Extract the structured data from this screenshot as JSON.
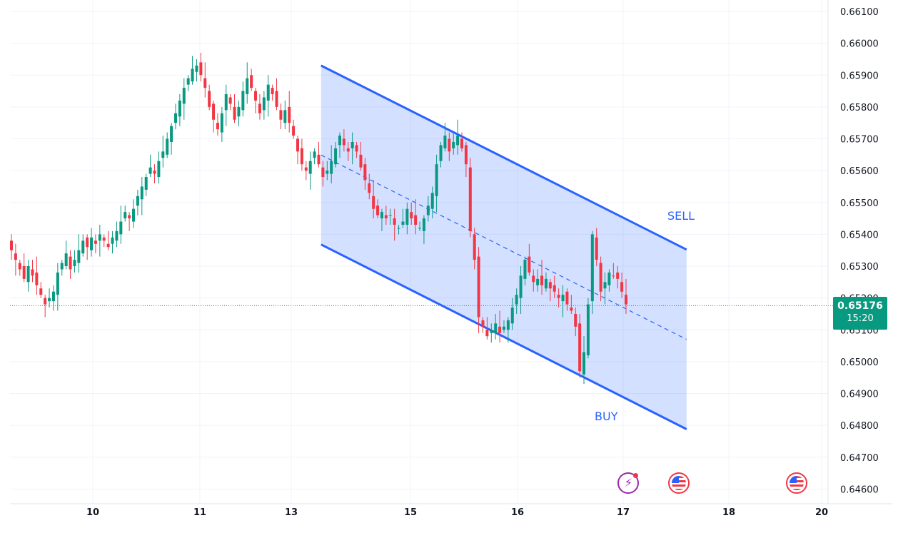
{
  "chart_data": {
    "type": "candlestick",
    "title": "",
    "xlabel": "",
    "ylabel": "",
    "x_ticks": [
      "10",
      "11",
      "13",
      "15",
      "16",
      "17",
      "18",
      "20"
    ],
    "y_ticks": [
      "0.66100",
      "0.66000",
      "0.65900",
      "0.65800",
      "0.65700",
      "0.65600",
      "0.65500",
      "0.65400",
      "0.65300",
      "0.65200",
      "0.65100",
      "0.65000",
      "0.64900",
      "0.64800",
      "0.64700",
      "0.64600"
    ],
    "ylim": [
      0.6458,
      0.6614
    ],
    "grid": true,
    "x_tick_times": [
      10,
      11,
      13,
      15,
      16,
      17,
      18,
      20
    ],
    "candle_closes": [
      0.6535,
      0.6532,
      0.6529,
      0.6526,
      0.653,
      0.6527,
      0.6524,
      0.6521,
      0.6518,
      0.652,
      0.6522,
      0.6528,
      0.6531,
      0.6534,
      0.6529,
      0.6532,
      0.6535,
      0.6538,
      0.6536,
      0.6539,
      0.6537,
      0.654,
      0.6538,
      0.6536,
      0.6539,
      0.6541,
      0.6544,
      0.6547,
      0.6545,
      0.6548,
      0.6552,
      0.6555,
      0.6558,
      0.6561,
      0.6559,
      0.6563,
      0.6566,
      0.657,
      0.6574,
      0.6578,
      0.6582,
      0.6586,
      0.6589,
      0.6592,
      0.6593,
      0.659,
      0.6586,
      0.658,
      0.6576,
      0.6573,
      0.6578,
      0.6584,
      0.6581,
      0.6576,
      0.658,
      0.6585,
      0.6589,
      0.6586,
      0.6582,
      0.6578,
      0.6583,
      0.6587,
      0.6584,
      0.658,
      0.6576,
      0.6579,
      0.6575,
      0.6571,
      0.6566,
      0.6562,
      0.656,
      0.6563,
      0.6566,
      0.6562,
      0.6558,
      0.656,
      0.6563,
      0.6567,
      0.6571,
      0.6568,
      0.6566,
      0.6569,
      0.6566,
      0.6561,
      0.6557,
      0.6553,
      0.6548,
      0.6546,
      0.6547,
      0.6545,
      0.6546,
      0.6543,
      0.6542,
      0.6544,
      0.6548,
      0.6545,
      0.6543,
      0.6542,
      0.6545,
      0.6549,
      0.6553,
      0.6562,
      0.6568,
      0.6571,
      0.6566,
      0.6569,
      0.6571,
      0.6567,
      0.6562,
      0.6541,
      0.6532,
      0.6514,
      0.6511,
      0.6508,
      0.651,
      0.6512,
      0.6509,
      0.6511,
      0.6513,
      0.6517,
      0.6521,
      0.6527,
      0.6532,
      0.6528,
      0.6525,
      0.6526,
      0.6524,
      0.6526,
      0.6523,
      0.6522,
      0.652,
      0.6521,
      0.6518,
      0.6516,
      0.6511,
      0.6497,
      0.6503,
      0.6518,
      0.654,
      0.6532,
      0.6522,
      0.6525,
      0.6528,
      0.6527,
      0.6526,
      0.6522,
      0.6518
    ],
    "channel": {
      "upper": {
        "start": {
          "time": 13.5,
          "price": 0.6593
        },
        "end": {
          "time": 17.6,
          "price": 0.65352
        }
      },
      "lower": {
        "start": {
          "time": 13.5,
          "price": 0.65368
        },
        "end": {
          "time": 17.6,
          "price": 0.64788
        }
      },
      "mid": {
        "start": {
          "time": 13.5,
          "price": 0.65649
        },
        "end": {
          "time": 17.6,
          "price": 0.6507
        }
      }
    },
    "annotations": [
      "SELL",
      "BUY"
    ],
    "last_price": "0.65176",
    "last_price_value": 0.65176,
    "countdown": "15:20",
    "colors": {
      "up": "#089981",
      "down": "#f23645",
      "channel_line": "#2962ff",
      "channel_fill": "#2962ff",
      "price_line": "#089981",
      "label_text": "#2962ff",
      "grid": "#f0f3fa",
      "axis_text": "#131722",
      "event_bolt": "#9c27b0",
      "event_flag": "#f23645"
    }
  },
  "events": [
    {
      "type": "bolt-icon",
      "time": 17.05
    },
    {
      "type": "us-flag-icon",
      "time": 17.53
    },
    {
      "type": "us-flag-icon",
      "time": 19.46
    }
  ]
}
